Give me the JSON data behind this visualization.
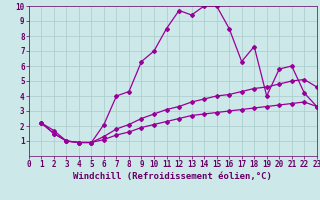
{
  "xlabel": "Windchill (Refroidissement éolien,°C)",
  "ylabel": "",
  "xlim": [
    0,
    23
  ],
  "ylim": [
    0,
    10
  ],
  "xticks": [
    0,
    1,
    2,
    3,
    4,
    5,
    6,
    7,
    8,
    9,
    10,
    11,
    12,
    13,
    14,
    15,
    16,
    17,
    18,
    19,
    20,
    21,
    22,
    23
  ],
  "yticks": [
    1,
    2,
    3,
    4,
    5,
    6,
    7,
    8,
    9,
    10
  ],
  "background_color": "#cde8e8",
  "grid_color": "#aacccc",
  "line_color": "#990099",
  "line1_x": [
    1,
    2,
    3,
    4,
    5,
    6,
    7,
    8,
    9,
    10,
    11,
    12,
    13,
    14,
    15,
    16,
    17,
    18,
    19,
    20,
    21,
    22,
    23
  ],
  "line1_y": [
    2.2,
    1.7,
    1.0,
    0.9,
    0.9,
    2.1,
    4.0,
    4.3,
    6.3,
    7.0,
    8.5,
    9.7,
    9.4,
    10.0,
    10.0,
    8.5,
    6.3,
    7.3,
    4.0,
    5.8,
    6.0,
    4.2,
    3.3
  ],
  "line2_x": [
    1,
    2,
    3,
    4,
    5,
    6,
    7,
    8,
    9,
    10,
    11,
    12,
    13,
    14,
    15,
    16,
    17,
    18,
    19,
    20,
    21,
    22,
    23
  ],
  "line2_y": [
    2.2,
    1.5,
    1.0,
    0.9,
    0.9,
    1.1,
    1.4,
    1.6,
    1.9,
    2.1,
    2.3,
    2.5,
    2.7,
    2.8,
    2.9,
    3.0,
    3.1,
    3.2,
    3.3,
    3.4,
    3.5,
    3.6,
    3.3
  ],
  "line3_x": [
    1,
    2,
    3,
    4,
    5,
    6,
    7,
    8,
    9,
    10,
    11,
    12,
    13,
    14,
    15,
    16,
    17,
    18,
    19,
    20,
    21,
    22,
    23
  ],
  "line3_y": [
    2.2,
    1.5,
    1.0,
    0.9,
    0.9,
    1.3,
    1.8,
    2.1,
    2.5,
    2.8,
    3.1,
    3.3,
    3.6,
    3.8,
    4.0,
    4.1,
    4.3,
    4.5,
    4.6,
    4.8,
    5.0,
    5.1,
    4.6
  ],
  "marker": "D",
  "markersize": 2.0,
  "linewidth": 0.9,
  "xlabel_fontsize": 6.5,
  "tick_fontsize": 5.5,
  "tick_color": "#660066"
}
